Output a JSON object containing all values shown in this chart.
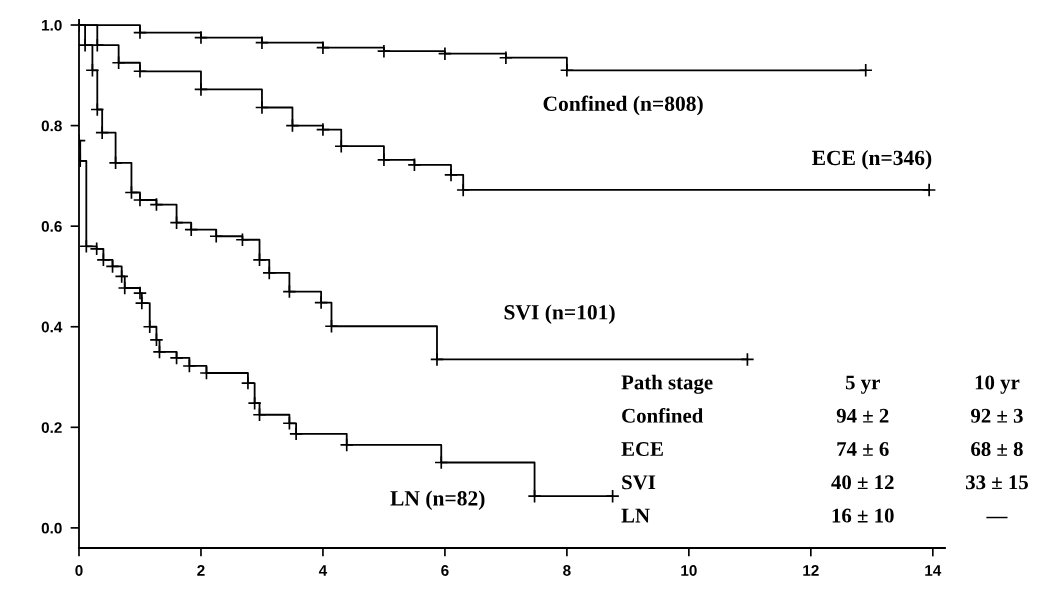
{
  "chart_data": {
    "type": "step",
    "xlim": [
      0,
      14.2
    ],
    "ylim": [
      -0.04,
      1.01
    ],
    "xticks": [
      0,
      2,
      4,
      6,
      8,
      10,
      12,
      14
    ],
    "yticks": [
      {
        "value": 0,
        "label": "0.0"
      },
      {
        "value": 0.2,
        "label": "0.2"
      },
      {
        "value": 0.4,
        "label": "0.4"
      },
      {
        "value": 0.6,
        "label": "0.6"
      },
      {
        "value": 0.8,
        "label": "0.8"
      },
      {
        "value": 1,
        "label": "1.0"
      }
    ],
    "grid": false,
    "legend": false,
    "marker": "cross",
    "line_style": "solid",
    "series": [
      {
        "name": "Confined (n=808)",
        "color": "#000000",
        "x": [
          0,
          1,
          2,
          3,
          4,
          5,
          6,
          7,
          8.0,
          12.9
        ],
        "values": [
          1.0,
          0.985,
          0.975,
          0.965,
          0.955,
          0.948,
          0.943,
          0.935,
          0.91,
          0.91
        ]
      },
      {
        "name": "ECE (n=346)",
        "color": "#000000",
        "x": [
          0,
          0.3,
          0.65,
          1,
          2,
          3,
          3.5,
          4,
          4.3,
          5,
          5.5,
          6.1,
          6.3,
          13.94
        ],
        "values": [
          1.0,
          0.96,
          0.925,
          0.908,
          0.872,
          0.836,
          0.8,
          0.792,
          0.759,
          0.732,
          0.722,
          0.702,
          0.672,
          0.672
        ]
      },
      {
        "name": "SVI (n=101)",
        "color": "#000000",
        "x": [
          0,
          0.1,
          0.22,
          0.3,
          0.38,
          0.6,
          0.86,
          1.0,
          1.27,
          1.6,
          1.84,
          2.25,
          2.68,
          2.96,
          3.12,
          3.45,
          3.97,
          4.14,
          5.87,
          10.96
        ],
        "values": [
          1.0,
          0.96,
          0.91,
          0.832,
          0.786,
          0.726,
          0.667,
          0.652,
          0.643,
          0.607,
          0.593,
          0.58,
          0.573,
          0.533,
          0.507,
          0.47,
          0.448,
          0.401,
          0.335,
          0.335
        ]
      },
      {
        "name": "LN (n=82)",
        "color": "#000000",
        "x": [
          0,
          0.02,
          0.12,
          0.29,
          0.4,
          0.55,
          0.7,
          0.75,
          1.0,
          1.03,
          1.16,
          1.27,
          1.32,
          1.6,
          1.81,
          2.09,
          2.77,
          2.88,
          2.96,
          3.45,
          3.56,
          4.39,
          5.94,
          7.47,
          8.75
        ],
        "values": [
          0.77,
          0.73,
          0.56,
          0.555,
          0.533,
          0.52,
          0.5,
          0.477,
          0.467,
          0.447,
          0.4,
          0.374,
          0.35,
          0.338,
          0.322,
          0.308,
          0.288,
          0.248,
          0.225,
          0.208,
          0.187,
          0.165,
          0.13,
          0.063,
          0.063
        ]
      }
    ],
    "annotations": [
      "Path stage",
      "5 yr",
      "10 yr",
      "Confined",
      "94 ± 2",
      "92 ± 3",
      "ECE",
      "74 ± 6",
      "68 ± 8",
      "SVI",
      "40 ± 12",
      "33 ± 15",
      "LN",
      "16 ± 10",
      "—"
    ]
  }
}
